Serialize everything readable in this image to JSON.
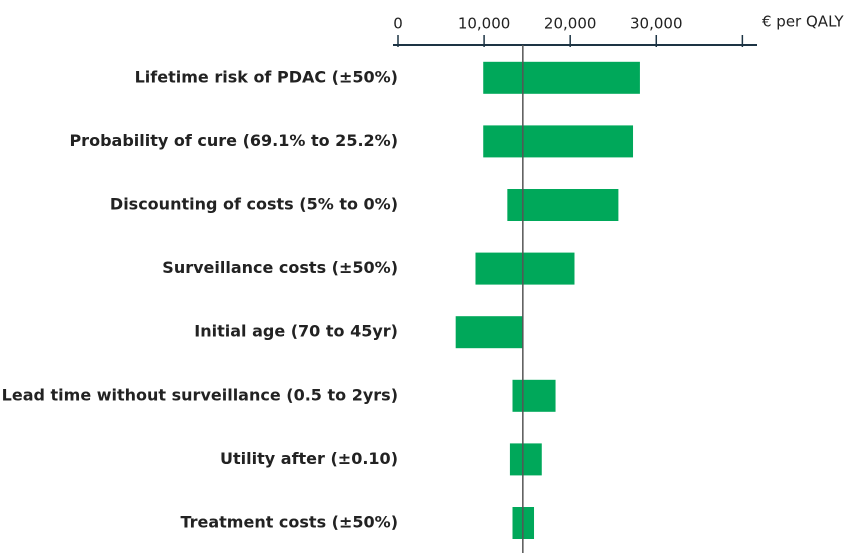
{
  "chart_data": {
    "type": "tornado",
    "x_label": "€ per QALY",
    "categories": [
      "Lifetime risk of PDAC (±50%)",
      "Probability of cure (69.1% to 25.2%)",
      "Discounting of costs (5% to 0%)",
      "Surveillance costs (±50%)",
      "Initial age (70 to 45yr)",
      "Lead time without surveillance (0.5 to 2yrs)",
      "Utility after (±0.10)",
      "Treatment costs (±50%)"
    ],
    "low": [
      9900,
      9900,
      12700,
      9000,
      6700,
      13300,
      13000,
      13300
    ],
    "high": [
      28100,
      27300,
      25600,
      20500,
      14500,
      18300,
      16700,
      15800
    ],
    "baseline": 14500,
    "color": "#00a85a",
    "xlim": [
      0,
      41700
    ],
    "xticks": [
      {
        "value": 0,
        "label": "0"
      },
      {
        "value": 10000,
        "label": "10,000"
      },
      {
        "value": 20000,
        "label": "20,000"
      },
      {
        "value": 30000,
        "label": "30,000"
      },
      {
        "value": 40000,
        "label": null
      }
    ]
  }
}
